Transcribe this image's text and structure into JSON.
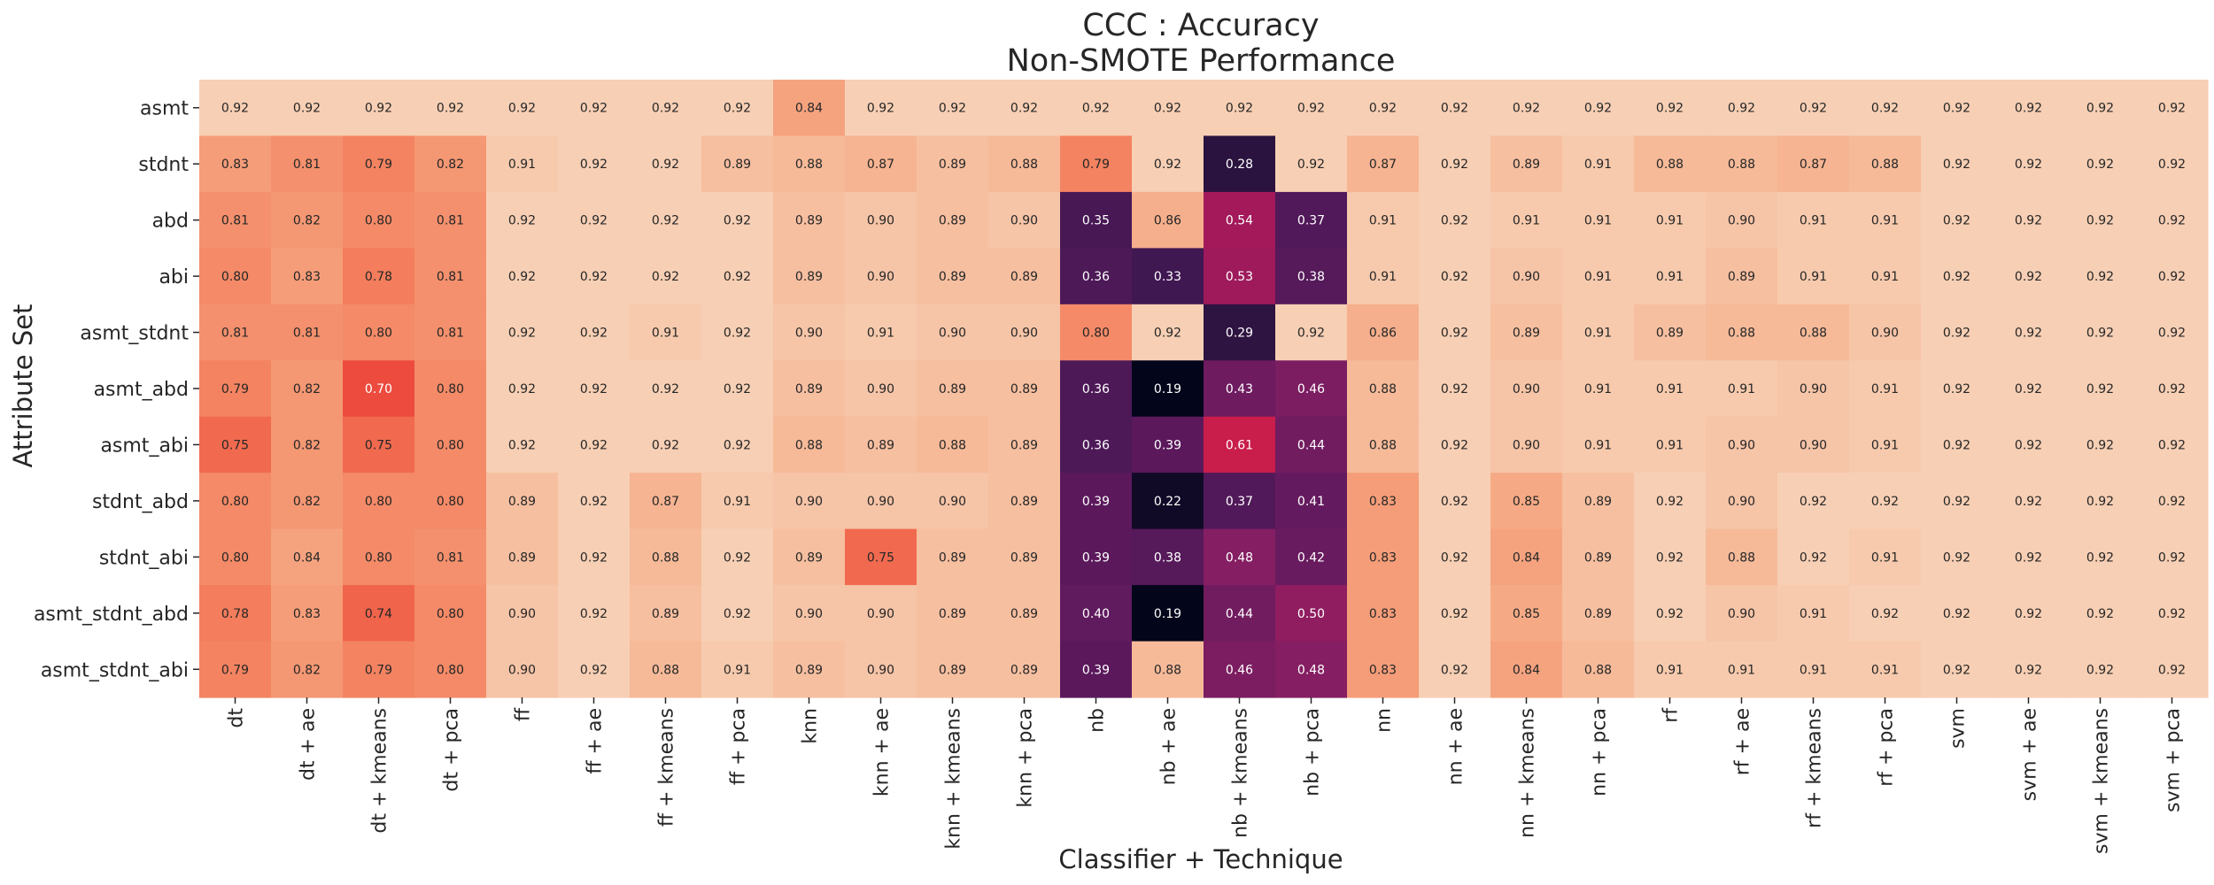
{
  "chart_data": {
    "type": "heatmap",
    "title_lines": [
      "CCC : Accuracy",
      "Non-SMOTE Performance"
    ],
    "xlabel": "Classifier + Technique",
    "ylabel": "Attribute Set",
    "x_categories": [
      "dt",
      "dt + ae",
      "dt + kmeans",
      "dt + pca",
      "ff",
      "ff + ae",
      "ff + kmeans",
      "ff + pca",
      "knn",
      "knn + ae",
      "knn + kmeans",
      "knn + pca",
      "nb",
      "nb + ae",
      "nb + kmeans",
      "nb + pca",
      "nn",
      "nn + ae",
      "nn + kmeans",
      "nn + pca",
      "rf",
      "rf + ae",
      "rf + kmeans",
      "rf + pca",
      "svm",
      "svm + ae",
      "svm + kmeans",
      "svm + pca"
    ],
    "y_categories": [
      "asmt",
      "stdnt",
      "abd",
      "abi",
      "asmt_stdnt",
      "asmt_abd",
      "asmt_abi",
      "stdnt_abd",
      "stdnt_abi",
      "asmt_stdnt_abd",
      "asmt_stdnt_abi"
    ],
    "values": [
      [
        0.92,
        0.92,
        0.92,
        0.92,
        0.92,
        0.92,
        0.92,
        0.92,
        0.84,
        0.92,
        0.92,
        0.92,
        0.92,
        0.92,
        0.92,
        0.92,
        0.92,
        0.92,
        0.92,
        0.92,
        0.92,
        0.92,
        0.92,
        0.92,
        0.92,
        0.92,
        0.92,
        0.92
      ],
      [
        0.83,
        0.81,
        0.79,
        0.82,
        0.91,
        0.92,
        0.92,
        0.89,
        0.88,
        0.87,
        0.89,
        0.88,
        0.79,
        0.92,
        0.28,
        0.92,
        0.87,
        0.92,
        0.89,
        0.91,
        0.88,
        0.88,
        0.87,
        0.88,
        0.92,
        0.92,
        0.92,
        0.92
      ],
      [
        0.81,
        0.82,
        0.8,
        0.81,
        0.92,
        0.92,
        0.92,
        0.92,
        0.89,
        0.9,
        0.89,
        0.9,
        0.35,
        0.86,
        0.54,
        0.37,
        0.91,
        0.92,
        0.91,
        0.91,
        0.91,
        0.9,
        0.91,
        0.91,
        0.92,
        0.92,
        0.92,
        0.92
      ],
      [
        0.8,
        0.83,
        0.78,
        0.81,
        0.92,
        0.92,
        0.92,
        0.92,
        0.89,
        0.9,
        0.89,
        0.89,
        0.36,
        0.33,
        0.53,
        0.38,
        0.91,
        0.92,
        0.9,
        0.91,
        0.91,
        0.89,
        0.91,
        0.91,
        0.92,
        0.92,
        0.92,
        0.92
      ],
      [
        0.81,
        0.81,
        0.8,
        0.81,
        0.92,
        0.92,
        0.91,
        0.92,
        0.9,
        0.91,
        0.9,
        0.9,
        0.8,
        0.92,
        0.29,
        0.92,
        0.86,
        0.92,
        0.89,
        0.91,
        0.89,
        0.88,
        0.88,
        0.9,
        0.92,
        0.92,
        0.92,
        0.92
      ],
      [
        0.79,
        0.82,
        0.7,
        0.8,
        0.92,
        0.92,
        0.92,
        0.92,
        0.89,
        0.9,
        0.89,
        0.89,
        0.36,
        0.19,
        0.43,
        0.46,
        0.88,
        0.92,
        0.9,
        0.91,
        0.91,
        0.91,
        0.9,
        0.91,
        0.92,
        0.92,
        0.92,
        0.92
      ],
      [
        0.75,
        0.82,
        0.75,
        0.8,
        0.92,
        0.92,
        0.92,
        0.92,
        0.88,
        0.89,
        0.88,
        0.89,
        0.36,
        0.39,
        0.61,
        0.44,
        0.88,
        0.92,
        0.9,
        0.91,
        0.91,
        0.9,
        0.9,
        0.91,
        0.92,
        0.92,
        0.92,
        0.92
      ],
      [
        0.8,
        0.82,
        0.8,
        0.8,
        0.89,
        0.92,
        0.87,
        0.91,
        0.9,
        0.9,
        0.9,
        0.89,
        0.39,
        0.22,
        0.37,
        0.41,
        0.83,
        0.92,
        0.85,
        0.89,
        0.92,
        0.9,
        0.92,
        0.92,
        0.92,
        0.92,
        0.92,
        0.92
      ],
      [
        0.8,
        0.84,
        0.8,
        0.81,
        0.89,
        0.92,
        0.88,
        0.92,
        0.89,
        0.75,
        0.89,
        0.89,
        0.39,
        0.38,
        0.48,
        0.42,
        0.83,
        0.92,
        0.84,
        0.89,
        0.92,
        0.88,
        0.92,
        0.91,
        0.92,
        0.92,
        0.92,
        0.92
      ],
      [
        0.78,
        0.83,
        0.74,
        0.8,
        0.9,
        0.92,
        0.89,
        0.92,
        0.9,
        0.9,
        0.89,
        0.89,
        0.4,
        0.19,
        0.44,
        0.5,
        0.83,
        0.92,
        0.85,
        0.89,
        0.92,
        0.9,
        0.91,
        0.92,
        0.92,
        0.92,
        0.92,
        0.92
      ],
      [
        0.79,
        0.82,
        0.79,
        0.8,
        0.9,
        0.92,
        0.88,
        0.91,
        0.89,
        0.9,
        0.89,
        0.89,
        0.39,
        0.88,
        0.46,
        0.48,
        0.83,
        0.92,
        0.84,
        0.88,
        0.91,
        0.91,
        0.91,
        0.91,
        0.92,
        0.92,
        0.92,
        0.92
      ]
    ],
    "value_format": "2 decimals",
    "colormap": "rocket",
    "colorbar": false
  }
}
